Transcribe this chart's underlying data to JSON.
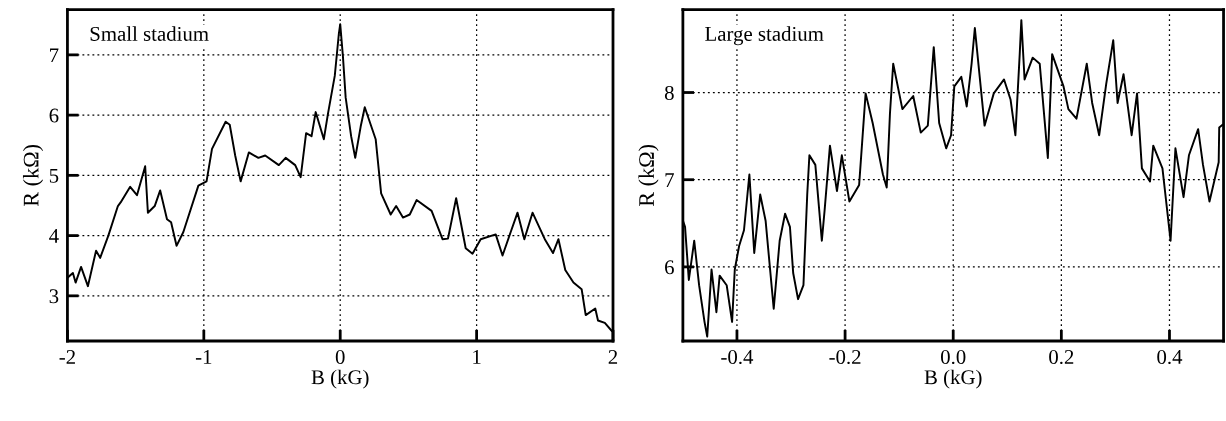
{
  "chart_data": [
    {
      "type": "line",
      "title": "Small stadium",
      "xlabel": "B (kG)",
      "ylabel": "R (kΩ)",
      "xlim": [
        -2,
        2
      ],
      "ylim": [
        2.25,
        7.75
      ],
      "xticks": [
        -2,
        -1,
        0,
        1,
        2
      ],
      "yticks": [
        3,
        4,
        5,
        6,
        7
      ],
      "grid": true,
      "line_style": "solid",
      "marker": "none",
      "series": [
        {
          "color": "#000000",
          "x": [
            -2.0,
            -1.96,
            -1.94,
            -1.9,
            -1.85,
            -1.79,
            -1.76,
            -1.7,
            -1.63,
            -1.61,
            -1.54,
            -1.49,
            -1.43,
            -1.41,
            -1.36,
            -1.32,
            -1.27,
            -1.24,
            -1.2,
            -1.15,
            -1.04,
            -0.98,
            -0.94,
            -0.84,
            -0.81,
            -0.77,
            -0.73,
            -0.67,
            -0.6,
            -0.55,
            -0.45,
            -0.4,
            -0.33,
            -0.29,
            -0.25,
            -0.21,
            -0.18,
            -0.12,
            -0.09,
            -0.04,
            -0.01,
            0.0,
            0.02,
            0.04,
            0.08,
            0.11,
            0.15,
            0.18,
            0.26,
            0.3,
            0.37,
            0.41,
            0.46,
            0.51,
            0.56,
            0.67,
            0.75,
            0.79,
            0.85,
            0.92,
            0.97,
            1.03,
            1.14,
            1.19,
            1.25,
            1.3,
            1.35,
            1.41,
            1.5,
            1.56,
            1.6,
            1.65,
            1.71,
            1.77,
            1.8,
            1.87,
            1.89,
            1.94,
            1.99
          ],
          "values": [
            3.3,
            3.38,
            3.22,
            3.48,
            3.16,
            3.75,
            3.63,
            4.0,
            4.49,
            4.55,
            4.81,
            4.67,
            5.15,
            4.38,
            4.49,
            4.75,
            4.27,
            4.22,
            3.83,
            4.06,
            4.83,
            4.9,
            5.44,
            5.89,
            5.84,
            5.33,
            4.9,
            5.38,
            5.29,
            5.33,
            5.17,
            5.29,
            5.17,
            4.97,
            5.7,
            5.65,
            6.05,
            5.6,
            6.02,
            6.65,
            7.35,
            7.51,
            6.97,
            6.29,
            5.65,
            5.29,
            5.81,
            6.13,
            5.6,
            4.7,
            4.35,
            4.49,
            4.3,
            4.35,
            4.59,
            4.41,
            3.94,
            3.95,
            4.62,
            3.79,
            3.7,
            3.94,
            4.02,
            3.67,
            4.06,
            4.38,
            3.94,
            4.38,
            3.94,
            3.71,
            3.94,
            3.43,
            3.22,
            3.11,
            2.68,
            2.79,
            2.59,
            2.55,
            2.42
          ]
        }
      ]
    },
    {
      "type": "line",
      "title": "Large stadium",
      "xlabel": "B (kG)",
      "ylabel": "R (kΩ)",
      "xlim": [
        -0.5,
        0.5
      ],
      "ylim": [
        5.15,
        8.95
      ],
      "xticks": [
        {
          "value": -0.4,
          "label": "-0.4"
        },
        {
          "value": -0.2,
          "label": "-0.2"
        },
        {
          "value": 0.0,
          "label": "0.0"
        },
        {
          "value": 0.2,
          "label": "0.2"
        },
        {
          "value": 0.4,
          "label": "0.4"
        }
      ],
      "yticks": [
        6,
        7,
        8
      ],
      "grid": true,
      "line_style": "solid",
      "marker": "none",
      "series": [
        {
          "color": "#000000",
          "x": [
            -0.5,
            -0.496,
            -0.489,
            -0.479,
            -0.47,
            -0.46,
            -0.455,
            -0.447,
            -0.438,
            -0.432,
            -0.419,
            -0.409,
            -0.404,
            -0.396,
            -0.387,
            -0.377,
            -0.368,
            -0.357,
            -0.347,
            -0.332,
            -0.321,
            -0.311,
            -0.302,
            -0.296,
            -0.287,
            -0.277,
            -0.27,
            -0.266,
            -0.255,
            -0.243,
            -0.238,
            -0.228,
            -0.215,
            -0.206,
            -0.192,
            -0.174,
            -0.162,
            -0.149,
            -0.13,
            -0.123,
            -0.117,
            -0.111,
            -0.094,
            -0.074,
            -0.06,
            -0.047,
            -0.036,
            -0.026,
            -0.013,
            -0.004,
            0.002,
            0.015,
            0.025,
            0.034,
            0.04,
            0.049,
            0.058,
            0.075,
            0.094,
            0.106,
            0.115,
            0.123,
            0.126,
            0.132,
            0.147,
            0.16,
            0.175,
            0.183,
            0.204,
            0.213,
            0.228,
            0.247,
            0.257,
            0.27,
            0.283,
            0.296,
            0.304,
            0.315,
            0.33,
            0.34,
            0.349,
            0.364,
            0.37,
            0.387,
            0.402,
            0.411,
            0.426,
            0.436,
            0.453,
            0.462,
            0.474,
            0.491,
            0.492,
            0.498
          ],
          "values": [
            6.53,
            6.46,
            5.85,
            6.3,
            5.79,
            5.37,
            5.2,
            5.97,
            5.48,
            5.9,
            5.79,
            5.37,
            5.97,
            6.24,
            6.42,
            7.06,
            6.16,
            6.83,
            6.53,
            5.52,
            6.3,
            6.61,
            6.46,
            5.93,
            5.63,
            5.79,
            6.83,
            7.28,
            7.17,
            6.3,
            6.64,
            7.39,
            6.87,
            7.28,
            6.75,
            6.94,
            7.99,
            7.65,
            7.06,
            6.91,
            7.76,
            8.33,
            7.81,
            7.96,
            7.54,
            7.62,
            8.52,
            7.65,
            7.36,
            7.51,
            8.07,
            8.18,
            7.84,
            8.33,
            8.74,
            8.18,
            7.62,
            7.99,
            8.15,
            7.92,
            7.51,
            8.44,
            8.83,
            8.15,
            8.4,
            8.33,
            7.25,
            8.44,
            8.07,
            7.81,
            7.7,
            8.33,
            7.88,
            7.51,
            8.1,
            8.6,
            7.88,
            8.21,
            7.51,
            7.99,
            7.13,
            6.98,
            7.39,
            7.13,
            6.3,
            7.36,
            6.8,
            7.28,
            7.58,
            7.17,
            6.75,
            7.2,
            7.6,
            7.63
          ]
        }
      ]
    }
  ]
}
